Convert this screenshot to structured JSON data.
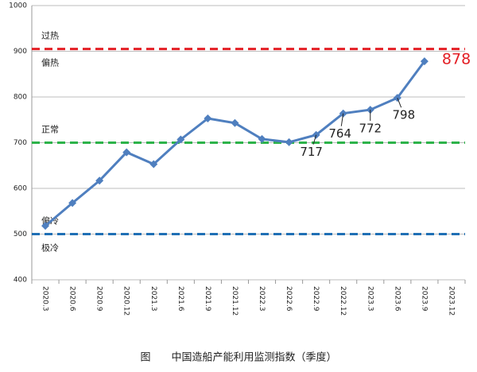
{
  "chart_data": {
    "type": "line",
    "caption": "图　　中国造船产能利用监测指数（季度）",
    "categories": [
      "2020.3",
      "2020.6",
      "2020.9",
      "2020.12",
      "2021.3",
      "2021.6",
      "2021.9",
      "2021.12",
      "2022.3",
      "2022.6",
      "2022.9",
      "2022.12",
      "2023.3",
      "2023.6",
      "2023.9",
      "2023.12"
    ],
    "series": [
      {
        "color": "#4f7fbf",
        "values": [
          518,
          568,
          617,
          679,
          653,
          707,
          753,
          743,
          708,
          701,
          717,
          764,
          772,
          798,
          878,
          null
        ],
        "value_labels": [
          null,
          null,
          null,
          null,
          null,
          null,
          null,
          null,
          null,
          null,
          "717",
          "764",
          "772",
          "798",
          "878"
        ]
      }
    ],
    "ylim": [
      400,
      1000
    ],
    "yticks": [
      400,
      500,
      600,
      700,
      800,
      900,
      1000
    ],
    "grid": true,
    "reference_lines": [
      {
        "value": 905,
        "color": "#e31e24",
        "labels": [
          "过热",
          "偏热"
        ]
      },
      {
        "value": 700,
        "color": "#2db34a",
        "labels": [
          "正常"
        ]
      },
      {
        "value": 500,
        "color": "#1f6fb5",
        "labels": [
          "偏冷",
          "极冷"
        ]
      }
    ]
  }
}
